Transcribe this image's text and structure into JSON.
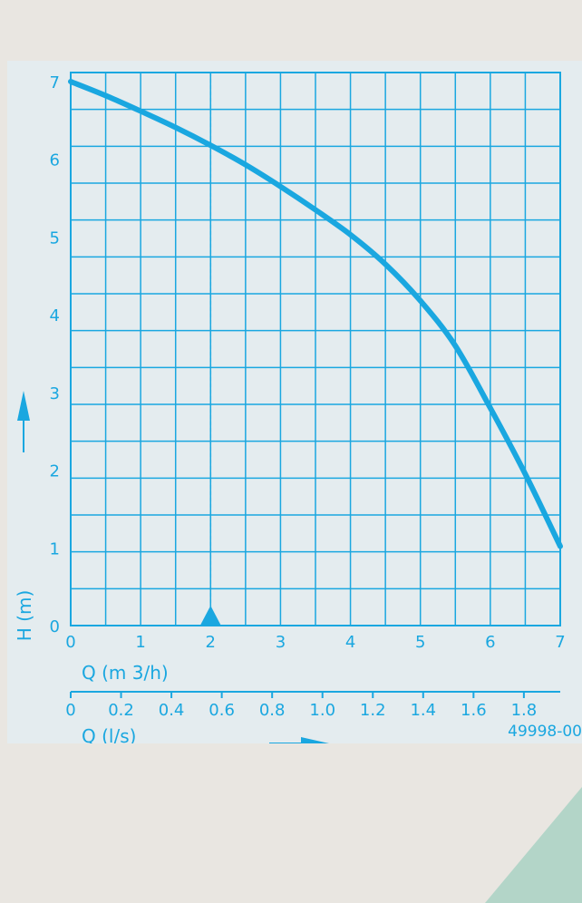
{
  "chart_data": {
    "type": "line",
    "series": [
      {
        "x": [
          0,
          0.5,
          1,
          1.5,
          2,
          2.5,
          3,
          3.5,
          4,
          4.5,
          5,
          5.5,
          6,
          6.5,
          7
        ],
        "values": [
          7.0,
          6.82,
          6.62,
          6.41,
          6.18,
          5.93,
          5.65,
          5.35,
          5.03,
          4.65,
          4.18,
          3.6,
          2.8,
          1.95,
          1.02
        ]
      }
    ],
    "xlim": [
      0,
      7
    ],
    "ylim": [
      0,
      7
    ],
    "x_ticks": [
      "0",
      "1",
      "2",
      "3",
      "4",
      "5",
      "6",
      "7"
    ],
    "y_ticks": [
      "0",
      "1",
      "2",
      "3",
      "4",
      "5",
      "6",
      "7"
    ],
    "x_secondary_ticks": [
      "0",
      "0.2",
      "0.4",
      "0.6",
      "0.8",
      "1.0",
      "1.2",
      "1.4",
      "1.6",
      "1.8"
    ],
    "ylabel": "H (m)",
    "xlabel": "Q (m 3/h)",
    "x_secondary_label": "Q (l/s)",
    "marker_x": 2,
    "grid": true,
    "footer_code": "49998-00",
    "colors": {
      "line": "#1aa7e0",
      "grid": "#1aa7e0",
      "panel": "#e4ecef",
      "page": "#e9e6e1",
      "corner": "#b3d5c8"
    }
  }
}
